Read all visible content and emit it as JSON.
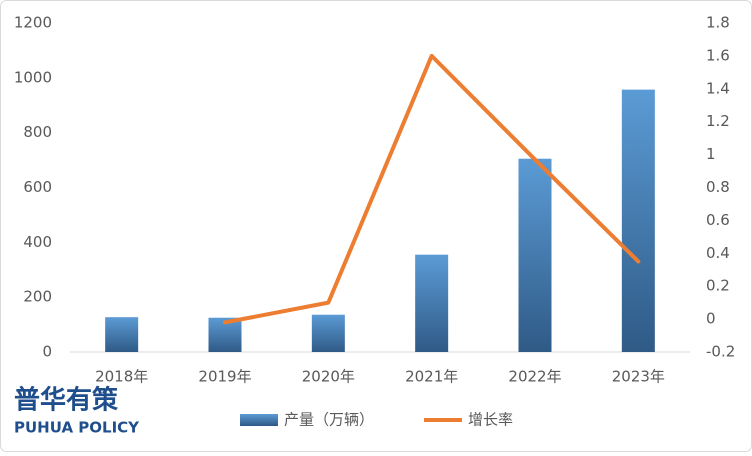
{
  "chart_data": {
    "type": "bar-line",
    "categories": [
      "2018年",
      "2019年",
      "2020年",
      "2021年",
      "2022年",
      "2023年"
    ],
    "series": [
      {
        "name": "产量（万辆）",
        "type": "bar",
        "color": "#5b9bd5",
        "values": [
          127,
          125,
          136,
          355,
          705,
          957
        ]
      },
      {
        "name": "增长率",
        "type": "line",
        "axis": "y2",
        "color": "#ed7d31",
        "values": [
          null,
          -0.02,
          0.1,
          1.6,
          0.97,
          0.35
        ]
      }
    ],
    "ylim": [
      0,
      1200
    ],
    "yticks": [
      0,
      200,
      400,
      600,
      800,
      1000,
      1200
    ],
    "y2lim": [
      -0.2,
      1.8
    ],
    "y2ticks": [
      -0.2,
      0,
      0.2,
      0.4,
      0.6,
      0.8,
      1,
      1.2,
      1.4,
      1.6,
      1.8
    ],
    "legend": "bottom"
  },
  "logo": {
    "title": "普华有策",
    "subtitle": "PUHUA POLICY"
  }
}
